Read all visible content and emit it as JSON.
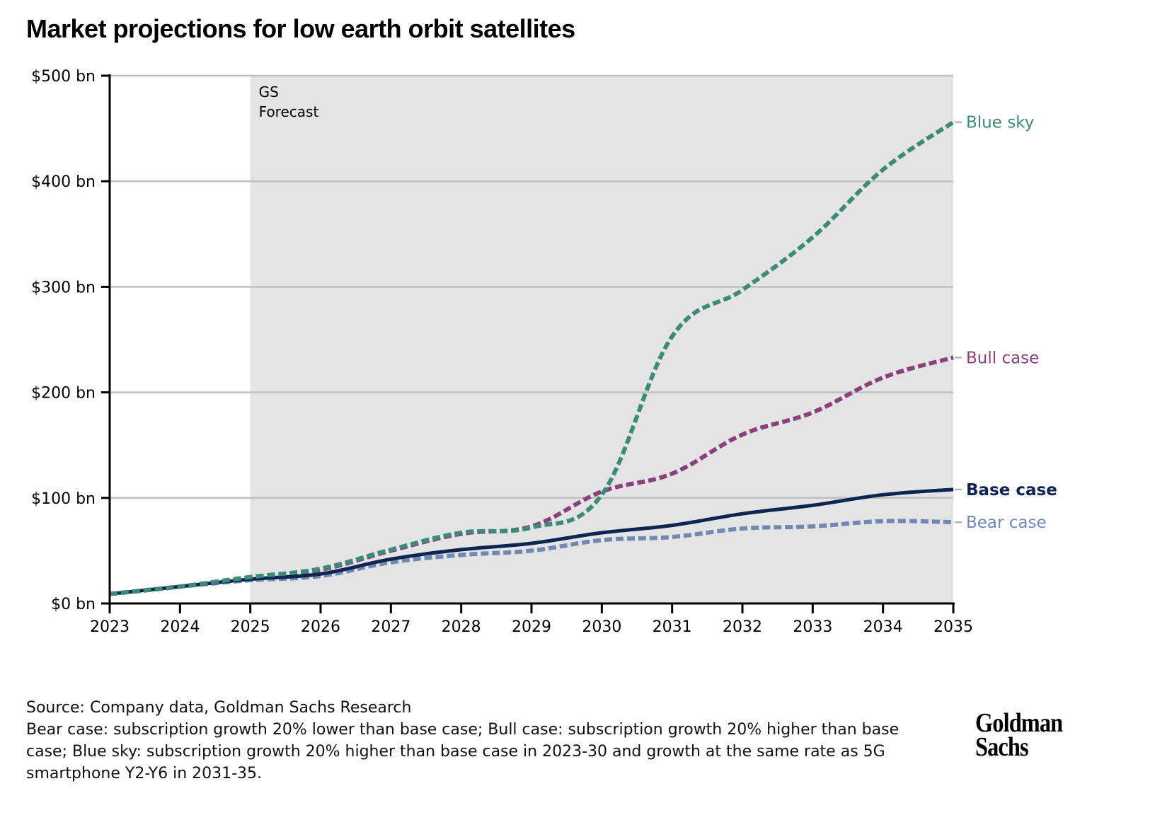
{
  "title": "Market projections for low earth orbit satellites",
  "footer": {
    "source": "Source: Company data, Goldman Sachs Research",
    "notes": "Bear case: subscription growth 20% lower than base case; Bull case: subscription growth 20% higher than base case; Blue sky: subscription growth 20% higher than base case in 2023-30 and growth at the same rate as 5G smartphone Y2-Y6 in 2031-35."
  },
  "logo": {
    "line1": "Goldman",
    "line2": "Sachs"
  },
  "colors": {
    "blue_sky": "#3b8a7a",
    "bull": "#8b3f7e",
    "base": "#0d2550",
    "bear": "#7089b4",
    "forecast_shade": "#e4e4e4",
    "grid": "#c0c0c0"
  },
  "chart_data": {
    "type": "line",
    "title": "Market projections for low earth orbit satellites",
    "xlabel": "",
    "ylabel": "",
    "x": [
      2023,
      2024,
      2025,
      2026,
      2027,
      2028,
      2029,
      2030,
      2031,
      2032,
      2033,
      2034,
      2035
    ],
    "x_tick_labels": [
      "2023",
      "2024",
      "2025",
      "2026",
      "2027",
      "2028",
      "2029",
      "2030",
      "2031",
      "2032",
      "2033",
      "2034",
      "2035"
    ],
    "xlim": [
      2023,
      2035
    ],
    "ylim": [
      0,
      500
    ],
    "y_ticks": [
      0,
      100,
      200,
      300,
      400,
      500
    ],
    "y_tick_labels": [
      "$0 bn",
      "$100 bn",
      "$200 bn",
      "$300 bn",
      "$400 bn",
      "$500 bn"
    ],
    "grid": "horizontal",
    "forecast_region": {
      "start": 2025,
      "end": 2035,
      "label_line1": "GS",
      "label_line2": "Forecast"
    },
    "legend_placement": "right (direct labels at line ends)",
    "series": [
      {
        "name": "Blue sky",
        "style": "dashed",
        "color": "#3b8a7a",
        "values": [
          9,
          16,
          25,
          33,
          51,
          67,
          72,
          103,
          253,
          297,
          347,
          411,
          456
        ]
      },
      {
        "name": "Bull case",
        "style": "dashed",
        "color": "#8b3f7e",
        "values": [
          9,
          16,
          25,
          32,
          50,
          66,
          73,
          106,
          123,
          160,
          181,
          214,
          233
        ]
      },
      {
        "name": "Base case",
        "style": "solid",
        "color": "#0d2550",
        "values": [
          9,
          16,
          23,
          28,
          42,
          51,
          57,
          67,
          74,
          85,
          93,
          103,
          108
        ]
      },
      {
        "name": "Bear case",
        "style": "dashed",
        "color": "#7089b4",
        "values": [
          9,
          16,
          22,
          26,
          39,
          46,
          50,
          60,
          63,
          71,
          73,
          78,
          77
        ]
      }
    ]
  }
}
